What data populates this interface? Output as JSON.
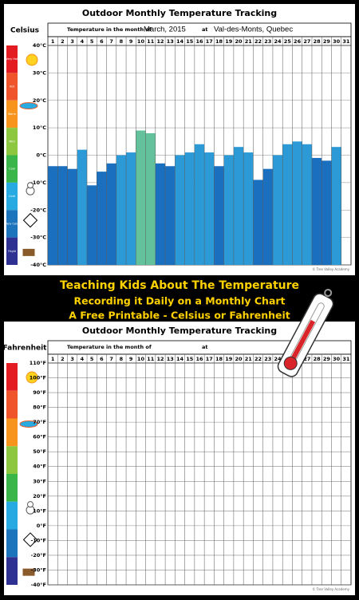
{
  "chart_data": [
    {
      "type": "bar",
      "title": "Outdoor Monthly Temperature Tracking",
      "scale_label": "Celsius",
      "month_label": "Temperature in the month of",
      "month": "March, 2015",
      "at_label": "at",
      "location": "Val-des-Monts, Quebec",
      "categories": [
        "1",
        "2",
        "3",
        "4",
        "5",
        "6",
        "7",
        "8",
        "9",
        "10",
        "11",
        "12",
        "13",
        "14",
        "15",
        "16",
        "17",
        "18",
        "19",
        "20",
        "21",
        "22",
        "23",
        "24",
        "25",
        "26",
        "27",
        "28",
        "29",
        "30",
        "31"
      ],
      "values": [
        -4,
        -4,
        -5,
        2,
        -11,
        -6,
        -3,
        0,
        1,
        9,
        8,
        -3,
        -4,
        0,
        1,
        4,
        1,
        -4,
        0,
        3,
        1,
        -9,
        -5,
        0,
        4,
        5,
        4,
        -1,
        -2,
        3,
        null
      ],
      "colors": [
        "#1a6fbf",
        "#1a6fbf",
        "#1a6fbf",
        "#2b9ad6",
        "#1a6fbf",
        "#1a6fbf",
        "#1a6fbf",
        "#2b9ad6",
        "#2b9ad6",
        "#63c29b",
        "#63c29b",
        "#1a6fbf",
        "#1a6fbf",
        "#2b9ad6",
        "#2b9ad6",
        "#2b9ad6",
        "#2b9ad6",
        "#1a6fbf",
        "#2b9ad6",
        "#2b9ad6",
        "#2b9ad6",
        "#1a6fbf",
        "#1a6fbf",
        "#2b9ad6",
        "#2b9ad6",
        "#2b9ad6",
        "#2b9ad6",
        "#1a6fbf",
        "#1a6fbf",
        "#2b9ad6",
        "#1a6fbf"
      ],
      "ylim": [
        -40,
        40
      ],
      "yticks": [
        {
          "value": 40,
          "label": "40°C"
        },
        {
          "value": 30,
          "label": "30°C"
        },
        {
          "value": 20,
          "label": "20°C"
        },
        {
          "value": 10,
          "label": "10°C"
        },
        {
          "value": 0,
          "label": "0°C"
        },
        {
          "value": -10,
          "label": "-10°C"
        },
        {
          "value": -20,
          "label": "-20°C"
        },
        {
          "value": -30,
          "label": "-30°C"
        },
        {
          "value": -40,
          "label": "-40°C"
        }
      ],
      "grid": true,
      "scale_colors": [
        "#e31b23",
        "#f0542a",
        "#f7941d",
        "#8dc63f",
        "#39b54a",
        "#27aae1",
        "#1c75bc",
        "#2e3192"
      ],
      "scale_bands": [
        "Very Hot",
        "Hot",
        "Warm",
        "Mild",
        "Cool",
        "Cold",
        "Very Cold",
        "Frigid"
      ],
      "credit": "© Tree Valley Academy"
    },
    {
      "type": "bar",
      "title": "Outdoor Monthly Temperature Tracking",
      "scale_label": "Fahrenheit",
      "month_label": "Temperature in the month of",
      "at_label": "at",
      "categories": [
        "1",
        "2",
        "3",
        "4",
        "5",
        "6",
        "7",
        "8",
        "9",
        "10",
        "11",
        "12",
        "13",
        "14",
        "15",
        "16",
        "17",
        "18",
        "19",
        "20",
        "21",
        "22",
        "23",
        "24",
        "25",
        "26",
        "27",
        "28",
        "29",
        "30",
        "31"
      ],
      "values": [
        null,
        null,
        null,
        null,
        null,
        null,
        null,
        null,
        null,
        null,
        null,
        null,
        null,
        null,
        null,
        null,
        null,
        null,
        null,
        null,
        null,
        null,
        null,
        null,
        null,
        null,
        null,
        null,
        null,
        null,
        null
      ],
      "ylim": [
        -40,
        110
      ],
      "yticks": [
        {
          "value": 110,
          "label": "110°F"
        },
        {
          "value": 100,
          "label": "100°F"
        },
        {
          "value": 90,
          "label": "90°F"
        },
        {
          "value": 80,
          "label": "80°F"
        },
        {
          "value": 70,
          "label": "70°F"
        },
        {
          "value": 60,
          "label": "60°F"
        },
        {
          "value": 50,
          "label": "50°F"
        },
        {
          "value": 40,
          "label": "40°F"
        },
        {
          "value": 30,
          "label": "30°F"
        },
        {
          "value": 20,
          "label": "20°F"
        },
        {
          "value": 10,
          "label": "10°F"
        },
        {
          "value": 0,
          "label": "0°F"
        },
        {
          "value": -10,
          "label": "-10°F"
        },
        {
          "value": -20,
          "label": "-20°F"
        },
        {
          "value": -30,
          "label": "-30°F"
        },
        {
          "value": -40,
          "label": "-40°F"
        }
      ],
      "grid": true,
      "scale_colors": [
        "#e31b23",
        "#f0542a",
        "#f7941d",
        "#8dc63f",
        "#39b54a",
        "#27aae1",
        "#1c75bc",
        "#2e3192"
      ],
      "credit": "© Tree Valley Academy"
    }
  ],
  "banner": {
    "lines": [
      "Teaching Kids About The Temperature",
      "Recording it Daily on a Monthly Chart",
      "A Free Printable - Celsius or Fahrenheit"
    ]
  }
}
